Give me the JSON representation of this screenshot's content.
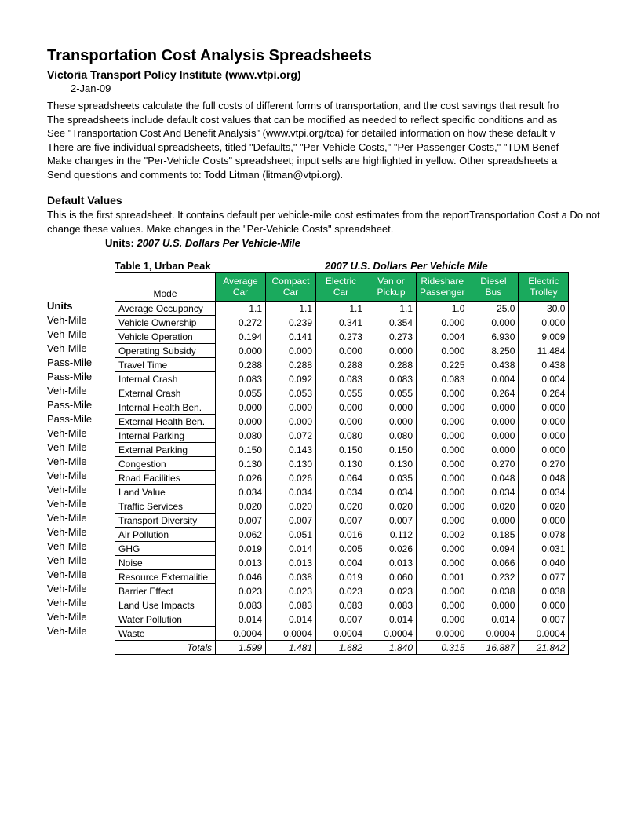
{
  "title": "Transportation Cost Analysis Spreadsheets",
  "subtitle": "Victoria Transport Policy Institute (www.vtpi.org)",
  "date": "2-Jan-09",
  "intro_lines": [
    "These spreadsheets calculate the full costs of different forms of transportation, and the cost savings that result fro",
    "The spreadsheets include default cost values that can be modified as needed to reflect specific conditions and as",
    "See \"Transportation Cost And Benefit Analysis\" (www.vtpi.org/tca) for detailed information on how these default v",
    "There are five individual spreadsheets, titled \"Defaults,\" \"Per-Vehicle Costs,\" \"Per-Passenger Costs,\" \"TDM Benef",
    "Make changes in the \"Per-Vehicle Costs\" spreadsheet; input sells are highlighted in yellow. Other spreadsheets a",
    "Send questions and comments to: Todd Litman (litman@vtpi.org)."
  ],
  "section_title": "Default Values",
  "section_text": "This is the first spreadsheet. It contains default per vehicle-mile cost estimates from the reportTransportation Cost a\nDo not change these values. Make changes in the \"Per-Vehicle Costs\" spreadsheet.",
  "units_label": "Units:",
  "units_value": "2007 U.S. Dollars Per Vehicle-Mile",
  "table_caption_left": "Table 1, Urban Peak",
  "table_caption_right": "2007 U.S. Dollars Per Vehicle Mile",
  "units_header": "Units",
  "columns": [
    "Mode",
    "Average\nCar",
    "Compact\nCar",
    "Electric\nCar",
    "Van or\nPickup",
    "Rideshare\nPassenger",
    "Diesel\nBus",
    "Electric\nTrolley"
  ],
  "rows": [
    {
      "unit": "",
      "label": "Average Occupancy",
      "v": [
        "1.1",
        "1.1",
        "1.1",
        "1.1",
        "1.0",
        "25.0",
        "30.0"
      ]
    },
    {
      "unit": "Veh-Mile",
      "label": "Vehicle Ownership",
      "v": [
        "0.272",
        "0.239",
        "0.341",
        "0.354",
        "0.000",
        "0.000",
        "0.000"
      ]
    },
    {
      "unit": "Veh-Mile",
      "label": "Vehicle Operation",
      "v": [
        "0.194",
        "0.141",
        "0.273",
        "0.273",
        "0.004",
        "6.930",
        "9.009"
      ]
    },
    {
      "unit": "Veh-Mile",
      "label": "Operating Subsidy",
      "v": [
        "0.000",
        "0.000",
        "0.000",
        "0.000",
        "0.000",
        "8.250",
        "11.484"
      ]
    },
    {
      "unit": "Pass-Mile",
      "label": "Travel Time",
      "v": [
        "0.288",
        "0.288",
        "0.288",
        "0.288",
        "0.225",
        "0.438",
        "0.438"
      ]
    },
    {
      "unit": "Pass-Mile",
      "label": "Internal Crash",
      "v": [
        "0.083",
        "0.092",
        "0.083",
        "0.083",
        "0.083",
        "0.004",
        "0.004"
      ]
    },
    {
      "unit": "Veh-Mile",
      "label": "External Crash",
      "v": [
        "0.055",
        "0.053",
        "0.055",
        "0.055",
        "0.000",
        "0.264",
        "0.264"
      ]
    },
    {
      "unit": "Pass-Mile",
      "label": "Internal Health Ben.",
      "v": [
        "0.000",
        "0.000",
        "0.000",
        "0.000",
        "0.000",
        "0.000",
        "0.000"
      ]
    },
    {
      "unit": "Pass-Mile",
      "label": "External Health Ben.",
      "v": [
        "0.000",
        "0.000",
        "0.000",
        "0.000",
        "0.000",
        "0.000",
        "0.000"
      ]
    },
    {
      "unit": "Veh-Mile",
      "label": "Internal Parking",
      "v": [
        "0.080",
        "0.072",
        "0.080",
        "0.080",
        "0.000",
        "0.000",
        "0.000"
      ]
    },
    {
      "unit": "Veh-Mile",
      "label": "External Parking",
      "v": [
        "0.150",
        "0.143",
        "0.150",
        "0.150",
        "0.000",
        "0.000",
        "0.000"
      ]
    },
    {
      "unit": "Veh-Mile",
      "label": "Congestion",
      "v": [
        "0.130",
        "0.130",
        "0.130",
        "0.130",
        "0.000",
        "0.270",
        "0.270"
      ]
    },
    {
      "unit": "Veh-Mile",
      "label": "Road Facilities",
      "v": [
        "0.026",
        "0.026",
        "0.064",
        "0.035",
        "0.000",
        "0.048",
        "0.048"
      ]
    },
    {
      "unit": "Veh-Mile",
      "label": "Land Value",
      "v": [
        "0.034",
        "0.034",
        "0.034",
        "0.034",
        "0.000",
        "0.034",
        "0.034"
      ]
    },
    {
      "unit": "Veh-Mile",
      "label": "Traffic Services",
      "v": [
        "0.020",
        "0.020",
        "0.020",
        "0.020",
        "0.000",
        "0.020",
        "0.020"
      ]
    },
    {
      "unit": "Veh-Mile",
      "label": "Transport Diversity",
      "v": [
        "0.007",
        "0.007",
        "0.007",
        "0.007",
        "0.000",
        "0.000",
        "0.000"
      ]
    },
    {
      "unit": "Veh-Mile",
      "label": "Air Pollution",
      "v": [
        "0.062",
        "0.051",
        "0.016",
        "0.112",
        "0.002",
        "0.185",
        "0.078"
      ]
    },
    {
      "unit": "Veh-Mile",
      "label": "GHG",
      "v": [
        "0.019",
        "0.014",
        "0.005",
        "0.026",
        "0.000",
        "0.094",
        "0.031"
      ]
    },
    {
      "unit": "Veh-Mile",
      "label": "Noise",
      "v": [
        "0.013",
        "0.013",
        "0.004",
        "0.013",
        "0.000",
        "0.066",
        "0.040"
      ]
    },
    {
      "unit": "Veh-Mile",
      "label": "Resource Externalitie",
      "v": [
        "0.046",
        "0.038",
        "0.019",
        "0.060",
        "0.001",
        "0.232",
        "0.077"
      ]
    },
    {
      "unit": "Veh-Mile",
      "label": "Barrier Effect",
      "v": [
        "0.023",
        "0.023",
        "0.023",
        "0.023",
        "0.000",
        "0.038",
        "0.038"
      ]
    },
    {
      "unit": "Veh-Mile",
      "label": "Land Use Impacts",
      "v": [
        "0.083",
        "0.083",
        "0.083",
        "0.083",
        "0.000",
        "0.000",
        "0.000"
      ]
    },
    {
      "unit": "Veh-Mile",
      "label": "Water Pollution",
      "v": [
        "0.014",
        "0.014",
        "0.007",
        "0.014",
        "0.000",
        "0.014",
        "0.007"
      ]
    },
    {
      "unit": "Veh-Mile",
      "label": "Waste",
      "v": [
        "0.0004",
        "0.0004",
        "0.0004",
        "0.0004",
        "0.0000",
        "0.0004",
        "0.0004"
      ]
    }
  ],
  "totals": {
    "label": "Totals",
    "v": [
      "1.599",
      "1.481",
      "1.682",
      "1.840",
      "0.315",
      "16.887",
      "21.842"
    ]
  },
  "colors": {
    "header_bg": "#1aaa5d",
    "header_fg": "#ffffff",
    "border": "#000000"
  }
}
